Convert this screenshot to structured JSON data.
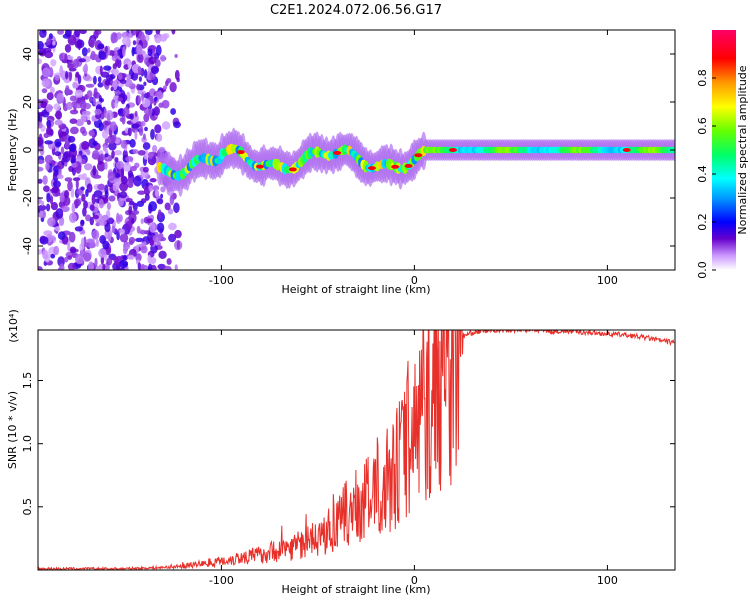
{
  "title": "C2E1.2024.072.06.56.G17",
  "chart_data": [
    {
      "type": "heatmap",
      "xlabel": "Height of straight line (km)",
      "ylabel": "Frequency (Hz)",
      "xlim": [
        -195,
        135
      ],
      "ylim": [
        -50,
        50
      ],
      "xticks": [
        -100,
        0,
        100
      ],
      "xtick_labels": [
        "-100",
        "0",
        "100"
      ],
      "yticks": [
        -40,
        -20,
        0,
        20,
        40
      ],
      "ytick_labels": [
        "-40",
        "-20",
        "0",
        "20",
        "40"
      ],
      "colorbar": {
        "label": "Normalized spectral amplitude",
        "range": [
          0,
          1
        ],
        "ticks": [
          0.0,
          0.2,
          0.4,
          0.6,
          0.8
        ],
        "tick_labels": [
          "0.0",
          "0.2",
          "0.4",
          "0.6",
          "0.8"
        ],
        "colormap": "rainbow"
      },
      "features": [
        {
          "description": "scattered noise",
          "x_range": [
            -195,
            -130
          ],
          "freq_range": [
            -50,
            50
          ],
          "amplitude": 0.1
        },
        {
          "description": "fluctuating signal band",
          "x_range": [
            -130,
            5
          ],
          "freq_range": [
            -10,
            6
          ],
          "amplitude": 0.5
        },
        {
          "description": "stable signal band",
          "x_range": [
            5,
            135
          ],
          "freq_center": 0,
          "amplitude": 0.5
        }
      ]
    },
    {
      "type": "line",
      "xlabel": "Height of straight line (km)",
      "ylabel": "SNR (10 * v/v)",
      "y_multiplier": "(x10⁴)",
      "xlim": [
        -195,
        135
      ],
      "ylim": [
        0,
        1.9
      ],
      "xticks": [
        -100,
        0,
        100
      ],
      "xtick_labels": [
        "-100",
        "0",
        "100"
      ],
      "yticks": [
        0.5,
        1.0,
        1.5
      ],
      "ytick_labels": [
        "0.5",
        "1.0",
        "1.5"
      ],
      "line_color": "#e8302a",
      "series": [
        {
          "x": [
            -195,
            -170,
            -150,
            -130,
            -120,
            -110,
            -100,
            -90,
            -80,
            -70,
            -60,
            -50,
            -40,
            -35,
            -30,
            -25,
            -20,
            -15,
            -10,
            -5,
            0,
            5,
            10,
            15,
            20,
            25,
            30,
            40,
            50,
            60,
            70,
            80,
            90,
            100,
            110,
            120,
            130,
            135
          ],
          "values": [
            0.01,
            0.01,
            0.01,
            0.02,
            0.03,
            0.05,
            0.07,
            0.1,
            0.12,
            0.16,
            0.2,
            0.25,
            0.35,
            0.45,
            0.5,
            0.55,
            0.6,
            0.7,
            0.8,
            0.95,
            1.1,
            1.25,
            1.35,
            1.5,
            1.7,
            1.85,
            1.88,
            1.9,
            1.9,
            1.9,
            1.89,
            1.89,
            1.88,
            1.87,
            1.86,
            1.84,
            1.81,
            1.8
          ]
        }
      ]
    }
  ]
}
